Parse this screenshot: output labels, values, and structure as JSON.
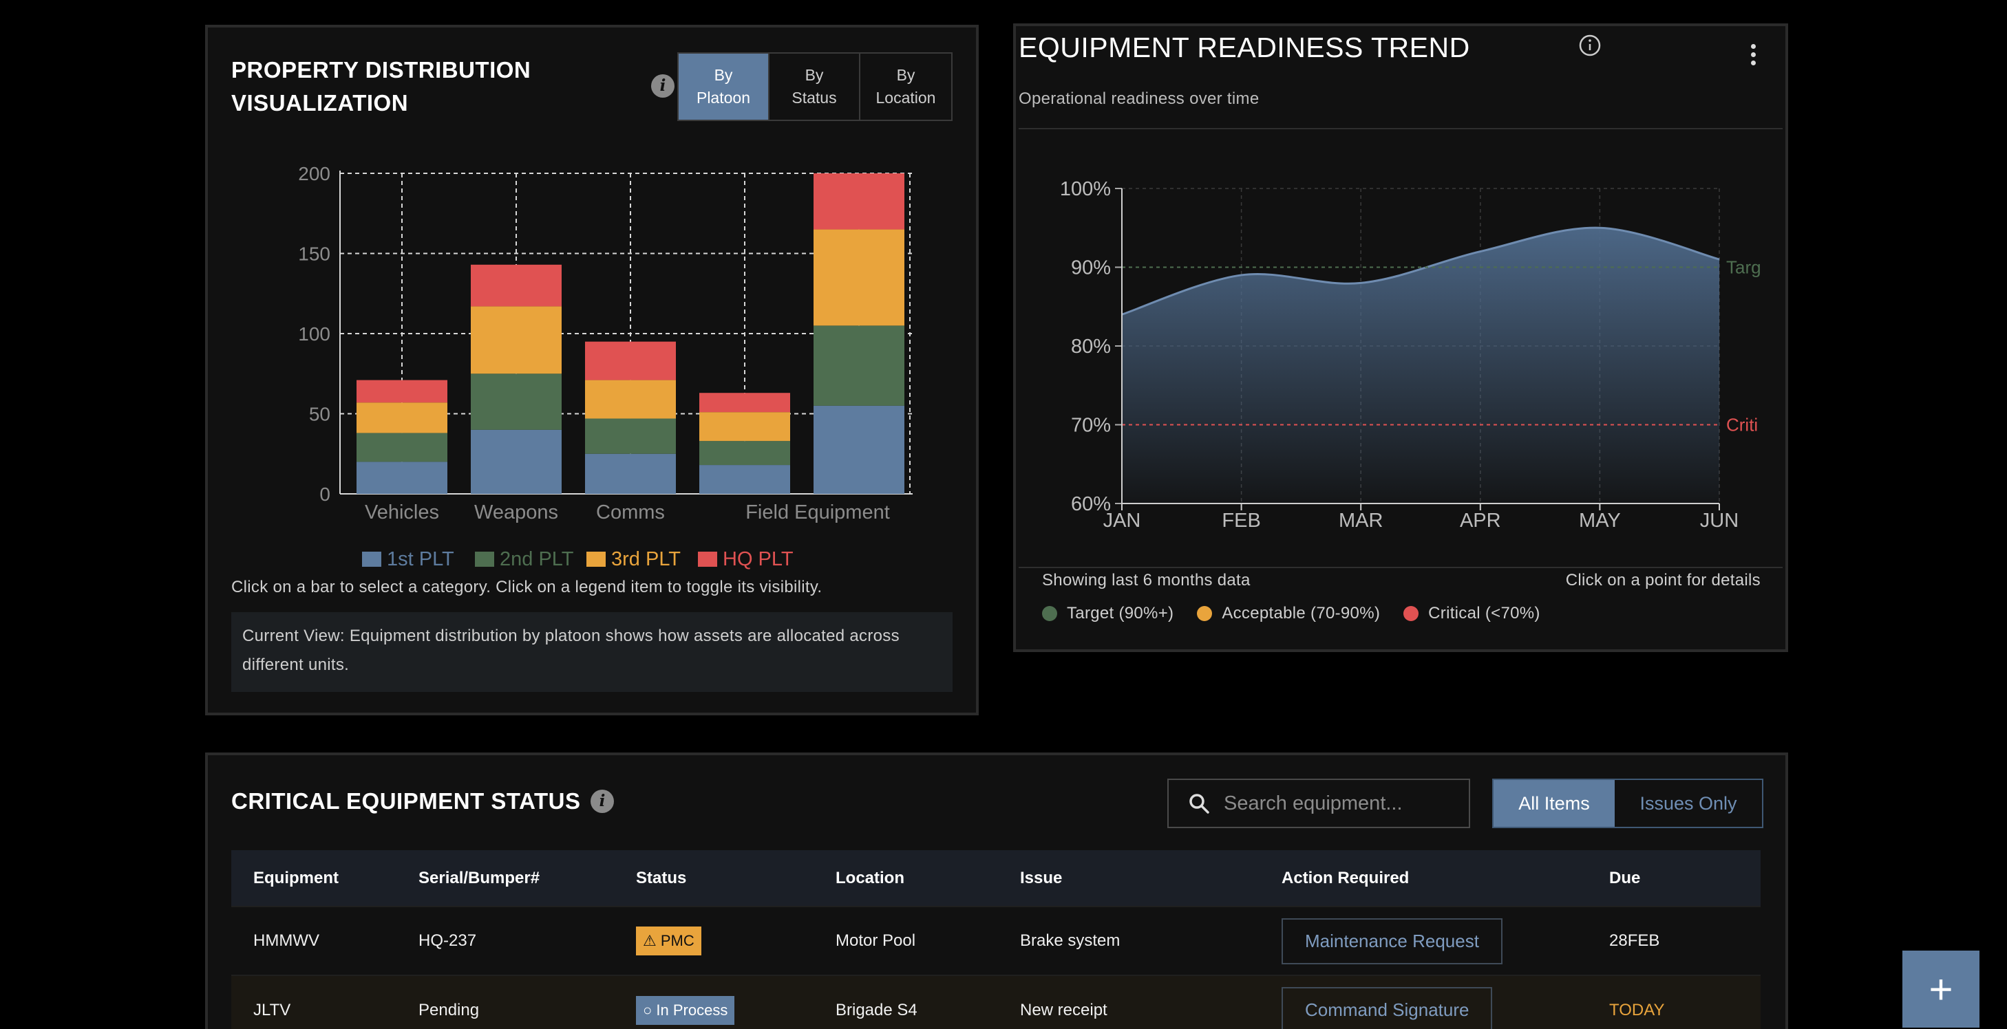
{
  "property": {
    "title": "PROPERTY DISTRIBUTION VISUALIZATION",
    "segments": [
      "By\nPlatoon",
      "By\nStatus",
      "By\nLocation"
    ],
    "active_segment": 0,
    "help_text": "Click on a bar to select a category. Click on a legend item to toggle its visibility.",
    "note": "Current View: Equipment distribution by platoon shows how assets are allocated across different units."
  },
  "trend": {
    "title": "EQUIPMENT READINESS TREND",
    "subtitle": "Operational readiness over time",
    "footer_left": "Showing last 6 months data",
    "footer_right": "Click on a point for details",
    "legend": [
      {
        "label": "Target (90%+)",
        "color": "#4e6e50"
      },
      {
        "label": "Acceptable (70-90%)",
        "color": "#e9a43c"
      },
      {
        "label": "Critical (<70%)",
        "color": "#e05252"
      }
    ],
    "target_label": "Targ",
    "critical_label": "Criti"
  },
  "status": {
    "title": "CRITICAL EQUIPMENT STATUS",
    "search_placeholder": "Search equipment...",
    "filters": [
      "All Items",
      "Issues Only"
    ],
    "columns": [
      "Equipment",
      "Serial/Bumper#",
      "Status",
      "Location",
      "Issue",
      "Action Required",
      "Due"
    ],
    "rows": [
      {
        "equipment": "HMMWV",
        "serial": "HQ-237",
        "status": "⚠ PMC",
        "location": "Motor Pool",
        "issue": "Brake system",
        "action": "Maintenance Request",
        "due": "28FEB"
      },
      {
        "equipment": "JLTV",
        "serial": "Pending",
        "status": "○ In Process",
        "location": "Brigade S4",
        "issue": "New receipt",
        "action": "Command Signature",
        "due": "TODAY"
      }
    ]
  },
  "fab_label": "+",
  "colors": {
    "plt1": "#5e7c9f",
    "plt2": "#4e6e50",
    "plt3": "#e9a43c",
    "hq": "#e05252",
    "accent": "#5e7c9f"
  },
  "chart_data": [
    {
      "type": "bar",
      "stacked": true,
      "categories": [
        "Vehicles",
        "Weapons",
        "Comms",
        "",
        "Field Equipment"
      ],
      "series": [
        {
          "name": "1st PLT",
          "values": [
            20,
            40,
            25,
            18,
            55
          ]
        },
        {
          "name": "2nd PLT",
          "values": [
            18,
            35,
            22,
            15,
            50
          ]
        },
        {
          "name": "3rd PLT",
          "values": [
            19,
            42,
            24,
            18,
            60
          ]
        },
        {
          "name": "HQ PLT",
          "values": [
            14,
            26,
            24,
            12,
            35
          ]
        }
      ],
      "y_ticks": [
        0,
        50,
        100,
        150,
        200
      ],
      "ylim": [
        0,
        200
      ],
      "grid": true,
      "legend_position": "bottom"
    },
    {
      "type": "area",
      "x": [
        "JAN",
        "FEB",
        "MAR",
        "APR",
        "MAY",
        "JUN"
      ],
      "y": [
        84,
        89,
        88,
        92,
        95,
        91
      ],
      "y_ticks": [
        "60%",
        "70%",
        "80%",
        "90%",
        "100%"
      ],
      "ylim": [
        60,
        100
      ],
      "target_line": 90,
      "critical_line": 70,
      "grid": true
    }
  ]
}
